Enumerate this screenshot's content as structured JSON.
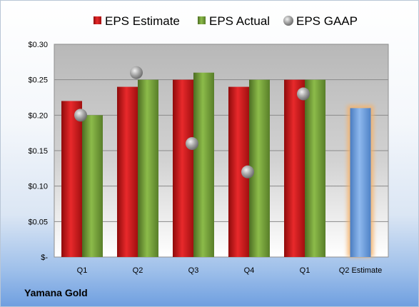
{
  "chart_data": {
    "type": "bar",
    "categories": [
      "Q1",
      "Q2",
      "Q3",
      "Q4",
      "Q1",
      "Q2 Estimate"
    ],
    "series": [
      {
        "name": "EPS Estimate",
        "values": [
          0.22,
          0.24,
          0.25,
          0.24,
          0.25,
          null
        ],
        "color": "#e0191c"
      },
      {
        "name": "EPS Actual",
        "values": [
          0.2,
          0.25,
          0.26,
          0.25,
          0.25,
          null
        ],
        "color": "#7aa63c"
      },
      {
        "name": "EPS GAAP",
        "type": "scatter",
        "values": [
          0.2,
          0.26,
          0.16,
          0.12,
          0.23,
          null
        ],
        "color": "#a9a9a9"
      },
      {
        "name": "",
        "values": [
          null,
          null,
          null,
          null,
          null,
          0.21
        ],
        "color": "#6fa0dd",
        "highlight": "#f5b26a"
      }
    ],
    "ylim": [
      0,
      0.3
    ],
    "yticks": [
      0,
      0.05,
      0.1,
      0.15,
      0.2,
      0.25,
      0.3
    ],
    "ytick_labels": [
      "$-",
      "$0.05",
      "$0.10",
      "$0.15",
      "$0.20",
      "$0.25",
      "$0.30"
    ],
    "grid": true,
    "legend": "top"
  },
  "company": "Yamana Gold"
}
